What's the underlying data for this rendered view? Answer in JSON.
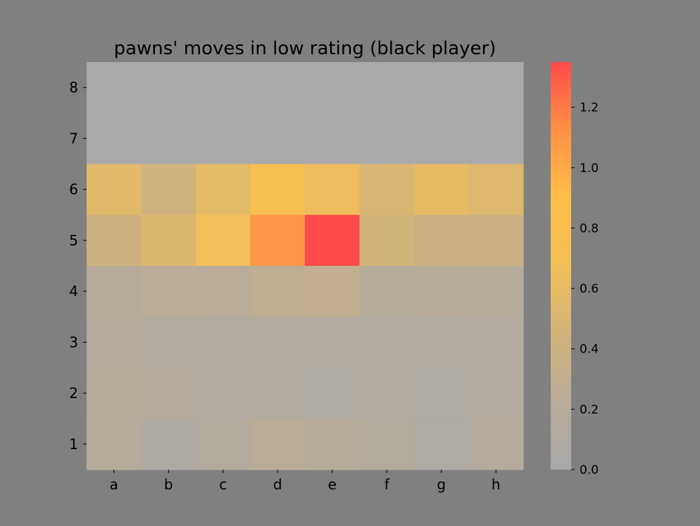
{
  "chart_data": {
    "type": "heatmap",
    "title": "pawns' moves in low rating (black player)",
    "xlabel": "",
    "ylabel": "",
    "x_categories": [
      "a",
      "b",
      "c",
      "d",
      "e",
      "f",
      "g",
      "h"
    ],
    "y_categories": [
      "8",
      "7",
      "6",
      "5",
      "4",
      "3",
      "2",
      "1"
    ],
    "values": [
      [
        0.0,
        0.0,
        0.0,
        0.0,
        0.0,
        0.0,
        0.0,
        0.0
      ],
      [
        0.0,
        0.0,
        0.0,
        0.0,
        0.0,
        0.0,
        0.0,
        0.0
      ],
      [
        0.55,
        0.42,
        0.57,
        0.78,
        0.64,
        0.5,
        0.6,
        0.53
      ],
      [
        0.4,
        0.52,
        0.68,
        1.1,
        1.35,
        0.45,
        0.38,
        0.38
      ],
      [
        0.2,
        0.24,
        0.22,
        0.28,
        0.3,
        0.18,
        0.2,
        0.2
      ],
      [
        0.17,
        0.1,
        0.11,
        0.14,
        0.12,
        0.11,
        0.1,
        0.14
      ],
      [
        0.18,
        0.16,
        0.1,
        0.14,
        0.09,
        0.1,
        0.09,
        0.14
      ],
      [
        0.2,
        0.08,
        0.15,
        0.22,
        0.2,
        0.15,
        0.07,
        0.16
      ]
    ],
    "colorbar": {
      "min": 0.0,
      "max": 1.35,
      "ticks": [
        "0.0",
        "0.2",
        "0.4",
        "0.6",
        "0.8",
        "1.0",
        "1.2"
      ],
      "tick_values": [
        0.0,
        0.2,
        0.4,
        0.6,
        0.8,
        1.0,
        1.2
      ],
      "colors": [
        "#a9a9a9",
        "#b8ab98",
        "#d2b47a",
        "#f2bf59",
        "#ffbe48",
        "#ff9146",
        "#ff4a4a"
      ]
    },
    "grid": false,
    "legend": "colorbar-right",
    "background": "#808080"
  }
}
